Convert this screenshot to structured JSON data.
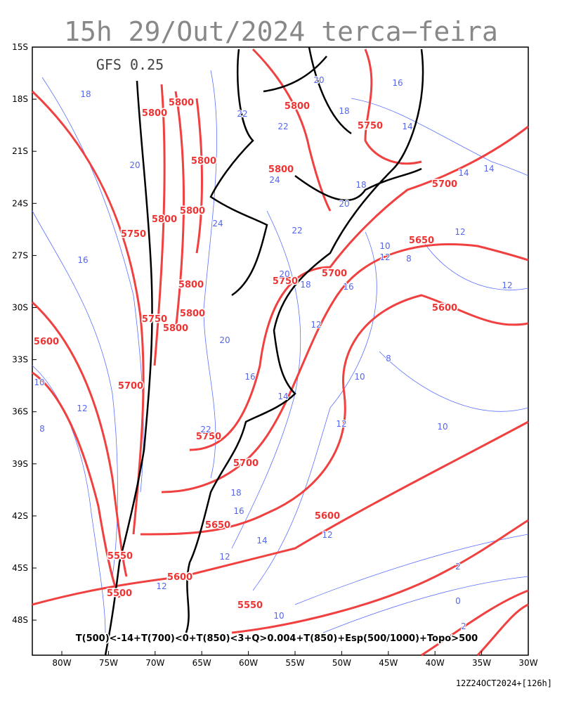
{
  "header": {
    "title": "15h 29/Out/2024 terca−feira"
  },
  "map": {
    "model": "GFS 0.25",
    "lat_labels": [
      "15S",
      "18S",
      "21S",
      "24S",
      "27S",
      "30S",
      "33S",
      "36S",
      "39S",
      "42S",
      "45S",
      "48S"
    ],
    "lon_labels": [
      "80W",
      "75W",
      "70W",
      "65W",
      "60W",
      "55W",
      "50W",
      "45W",
      "40W",
      "35W",
      "30W"
    ],
    "red_labels": [
      "5800",
      "5800",
      "5800",
      "5750",
      "5800",
      "5800",
      "5700",
      "5800",
      "5800",
      "5750",
      "5650",
      "5700",
      "5750",
      "5800",
      "5600",
      "5800",
      "5750",
      "5800",
      "5600",
      "5700",
      "5750",
      "5700",
      "5600",
      "5650",
      "5550",
      "5600",
      "5500",
      "5550"
    ],
    "blue_labels": [
      "18",
      "22",
      "22",
      "20",
      "16",
      "18",
      "14",
      "20",
      "24",
      "18",
      "14",
      "14",
      "20",
      "24",
      "22",
      "12",
      "10",
      "16",
      "12",
      "8",
      "20",
      "18",
      "12",
      "16",
      "12",
      "20",
      "8",
      "16",
      "10",
      "10",
      "12",
      "14",
      "8",
      "12",
      "10",
      "22",
      "18",
      "16",
      "12",
      "14",
      "12",
      "2",
      "12",
      "0",
      "10",
      "2"
    ],
    "legend": "T(500)<-14+T(700)<0+T(850)<3+Q>0.004+T(850)+Esp(500/1000)+Topo>500"
  },
  "footer": {
    "run": "12Z24OCT2024+[126h]"
  }
}
